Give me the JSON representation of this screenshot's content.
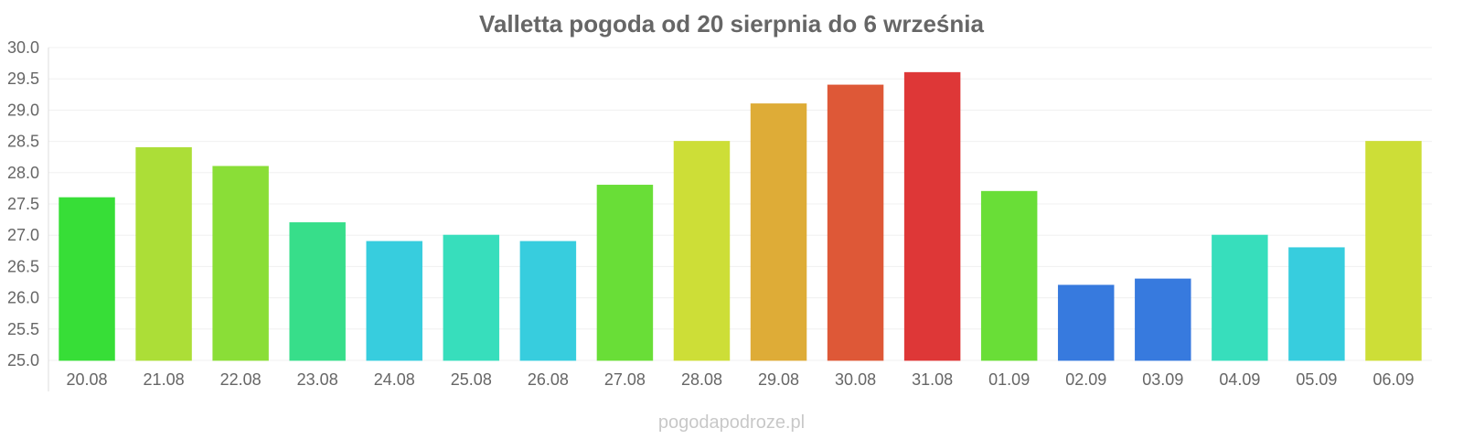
{
  "chart_data": {
    "type": "bar",
    "title": "Valletta pogoda od 20 sierpnia do 6 września",
    "xlabel": "",
    "ylabel": "",
    "ylim": [
      25.0,
      30.0
    ],
    "yticks": [
      "25.0",
      "25.5",
      "26.0",
      "26.5",
      "27.0",
      "27.5",
      "28.0",
      "28.5",
      "29.0",
      "29.5",
      "30.0"
    ],
    "grid": true,
    "categories": [
      "20.08",
      "21.08",
      "22.08",
      "23.08",
      "24.08",
      "25.08",
      "26.08",
      "27.08",
      "28.08",
      "29.08",
      "30.08",
      "31.08",
      "01.09",
      "02.09",
      "03.09",
      "04.09",
      "05.09",
      "06.09"
    ],
    "values": [
      27.6,
      28.4,
      28.1,
      27.2,
      26.9,
      27.0,
      26.9,
      27.8,
      28.5,
      29.1,
      29.4,
      29.6,
      27.7,
      26.2,
      26.3,
      27.0,
      26.8,
      28.5
    ],
    "colors": [
      "#33dd33",
      "#aadd33",
      "#88dd33",
      "#33dd88",
      "#33ccdd",
      "#33ddbb",
      "#33ccdd",
      "#66dd33",
      "#ccdd33",
      "#ddaa33",
      "#dd5533",
      "#dd3333",
      "#66dd33",
      "#3377dd",
      "#3377dd",
      "#33ddbb",
      "#33ccdd",
      "#ccdd33"
    ]
  },
  "watermark": "pogodapodroze.pl"
}
